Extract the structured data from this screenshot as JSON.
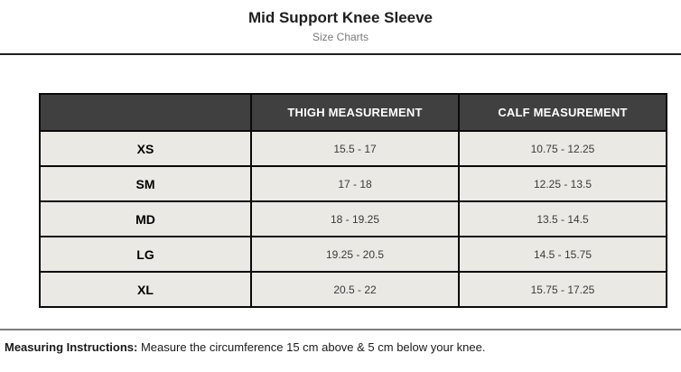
{
  "page": {
    "title": "Mid Support Knee Sleeve",
    "subtitle": "Size Charts"
  },
  "table": {
    "columns": [
      "",
      "THIGH MEASUREMENT",
      "CALF MEASUREMENT"
    ],
    "rows": [
      {
        "size": "XS",
        "thigh": "15.5 - 17",
        "calf": "10.75 - 12.25"
      },
      {
        "size": "SM",
        "thigh": "17 - 18",
        "calf": "12.25 - 13.5"
      },
      {
        "size": "MD",
        "thigh": "18 - 19.25",
        "calf": "13.5 - 14.5"
      },
      {
        "size": "LG",
        "thigh": "19.25 - 20.5",
        "calf": "14.5 - 15.75"
      },
      {
        "size": "XL",
        "thigh": "20.5 - 22",
        "calf": "15.75 - 17.25"
      }
    ]
  },
  "footer": {
    "label": "Measuring Instructions:",
    "text": " Measure the circumference 15 cm above & 5 cm below your knee."
  },
  "colors": {
    "header_bg": "#404040",
    "header_text": "#ffffff",
    "row_bg": "#ebe9e4",
    "border": "#0a0a0a",
    "top_rule": "#1f1f1f",
    "bottom_rule": "#7d7d7d",
    "title_text": "#1e1e1e",
    "subtitle_text": "#7a7a7a",
    "value_text": "#3a3a3a"
  }
}
